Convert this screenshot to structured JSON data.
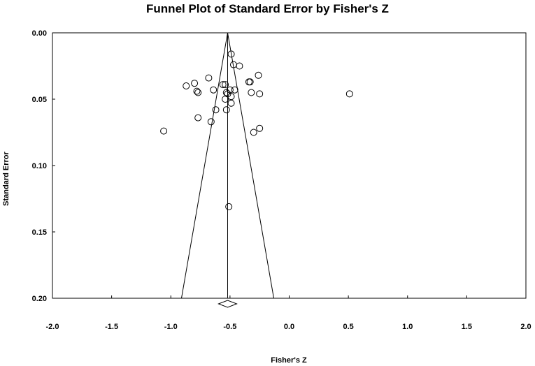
{
  "chart_data": {
    "type": "scatter",
    "title": "Funnel Plot of Standard Error by Fisher's Z",
    "xlabel": "Fisher's Z",
    "ylabel": "Standard Error",
    "xlim": [
      -2.0,
      2.0
    ],
    "ylim": [
      0.0,
      0.2
    ],
    "y_inverted": true,
    "x_ticks": [
      "-2.0",
      "-1.5",
      "-1.0",
      "-0.5",
      "0.0",
      "0.5",
      "1.0",
      "1.5",
      "2.0"
    ],
    "y_ticks": [
      "0.00",
      "0.05",
      "0.10",
      "0.15",
      "0.20"
    ],
    "grid": false,
    "legend": "none",
    "marker": "open-circle",
    "summary_effect": -0.52,
    "funnel": {
      "apex": [
        -0.52,
        0.0
      ],
      "base_left": [
        -0.91,
        0.2
      ],
      "base_right": [
        -0.13,
        0.2
      ]
    },
    "points": [
      {
        "x": -0.49,
        "y": 0.016
      },
      {
        "x": -0.47,
        "y": 0.024
      },
      {
        "x": -0.42,
        "y": 0.025
      },
      {
        "x": -0.26,
        "y": 0.032
      },
      {
        "x": -0.68,
        "y": 0.034
      },
      {
        "x": -0.8,
        "y": 0.038
      },
      {
        "x": -0.33,
        "y": 0.037
      },
      {
        "x": -0.34,
        "y": 0.037
      },
      {
        "x": -0.87,
        "y": 0.04
      },
      {
        "x": -0.56,
        "y": 0.039
      },
      {
        "x": -0.54,
        "y": 0.039
      },
      {
        "x": -0.64,
        "y": 0.043
      },
      {
        "x": -0.46,
        "y": 0.043
      },
      {
        "x": -0.5,
        "y": 0.043
      },
      {
        "x": -0.78,
        "y": 0.044
      },
      {
        "x": -0.77,
        "y": 0.045
      },
      {
        "x": -0.53,
        "y": 0.045
      },
      {
        "x": -0.52,
        "y": 0.046
      },
      {
        "x": -0.32,
        "y": 0.045
      },
      {
        "x": -0.25,
        "y": 0.046
      },
      {
        "x": 0.51,
        "y": 0.046
      },
      {
        "x": -0.49,
        "y": 0.048
      },
      {
        "x": -0.54,
        "y": 0.05
      },
      {
        "x": -0.49,
        "y": 0.053
      },
      {
        "x": -0.62,
        "y": 0.058
      },
      {
        "x": -0.53,
        "y": 0.058
      },
      {
        "x": -0.77,
        "y": 0.064
      },
      {
        "x": -0.66,
        "y": 0.067
      },
      {
        "x": -0.25,
        "y": 0.072
      },
      {
        "x": -1.06,
        "y": 0.074
      },
      {
        "x": -0.3,
        "y": 0.075
      },
      {
        "x": -0.51,
        "y": 0.131
      }
    ]
  }
}
